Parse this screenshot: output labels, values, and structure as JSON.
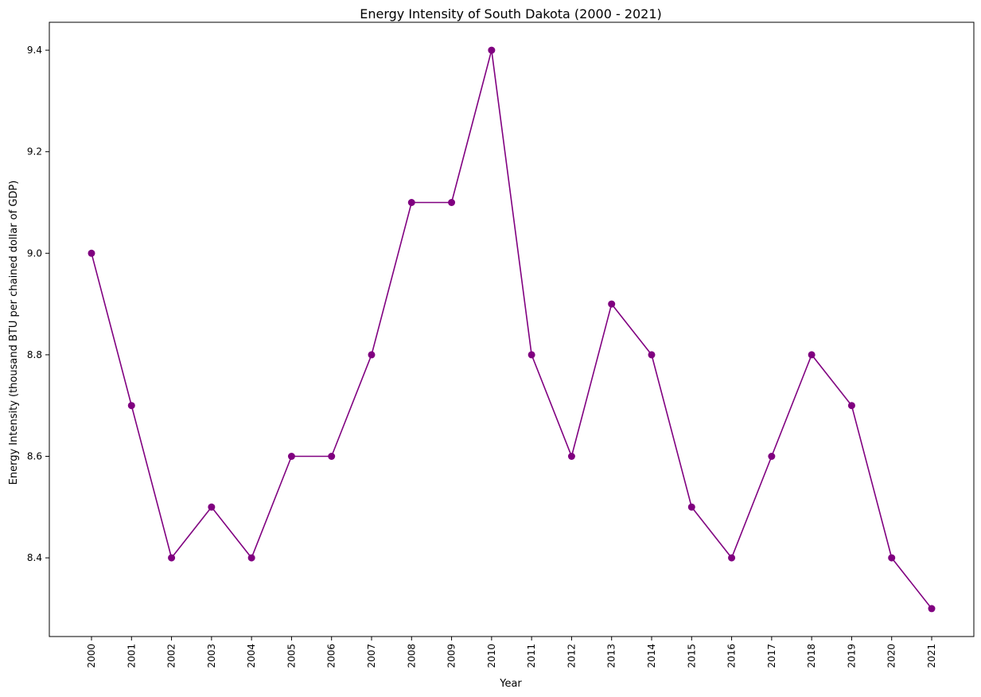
{
  "chart_data": {
    "type": "line",
    "title": "Energy Intensity of South Dakota (2000 - 2021)",
    "xlabel": "Year",
    "ylabel": "Energy Intensity (thousand BTU per chained dollar of GDP)",
    "categories": [
      "2000",
      "2001",
      "2002",
      "2003",
      "2004",
      "2005",
      "2006",
      "2007",
      "2008",
      "2009",
      "2010",
      "2011",
      "2012",
      "2013",
      "2014",
      "2015",
      "2016",
      "2017",
      "2018",
      "2019",
      "2020",
      "2021"
    ],
    "values": [
      9.0,
      8.7,
      8.4,
      8.5,
      8.4,
      8.6,
      8.6,
      8.8,
      9.1,
      9.1,
      9.4,
      8.8,
      8.6,
      8.9,
      8.8,
      8.5,
      8.4,
      8.6,
      8.8,
      8.7,
      8.4,
      8.3
    ],
    "yticks": [
      8.4,
      8.6,
      8.8,
      9.0,
      9.2,
      9.4
    ],
    "ylim": [
      8.245,
      9.455
    ],
    "color": "#800080",
    "marker": "circle",
    "grid": false,
    "legend": "none"
  }
}
